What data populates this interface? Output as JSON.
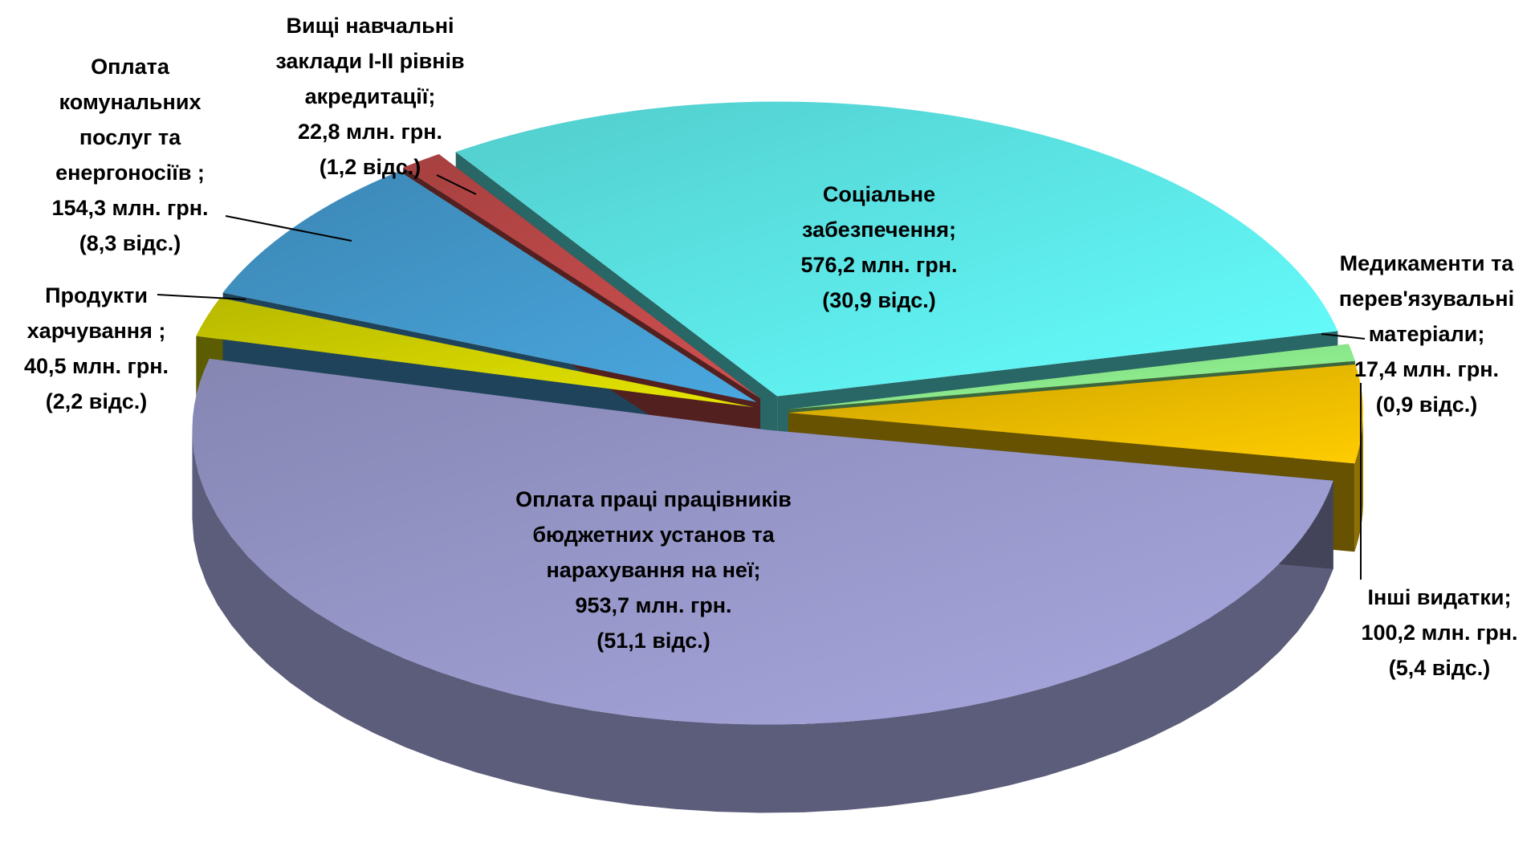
{
  "chart_data": {
    "type": "pie",
    "categories": [
      "Соціальне забезпечення;",
      "Медикаменти та перев'язувальні матеріали;",
      "Інші видатки;",
      "Оплата праці працівників бюджетних установ та нарахування на неї;",
      "Продукти харчування ;",
      "Оплата комунальних послуг та енергоносіїв ;",
      "Вищі навчальні заклади І-ІІ рівнів акредитації;"
    ],
    "values": [
      30.9,
      0.9,
      5.4,
      51.1,
      2.2,
      8.3,
      1.2
    ],
    "value_labels": [
      "(30,9 відс.)",
      "(0,9 відс.)",
      "(5,4 відс.)",
      "(51,1 відс.)",
      "(2,2 відс.)",
      "(8,3 відс.)",
      "(1,2 відс.)"
    ],
    "amounts": [
      576.2,
      17.4,
      100.2,
      953.7,
      40.5,
      154.3,
      22.8
    ],
    "amount_labels": [
      "576,2 млн. грн.",
      "17,4 млн. грн.",
      "100,2 млн. грн.",
      "953,7 млн. грн.",
      "40,5 млн. грн.",
      "154,3 млн. грн.",
      "22,8 млн. грн."
    ],
    "colors": [
      "#66ffff",
      "#99ff99",
      "#ffcc00",
      "#a8a8e0",
      "#e6e600",
      "#4aa8e0",
      "#d05050"
    ]
  }
}
